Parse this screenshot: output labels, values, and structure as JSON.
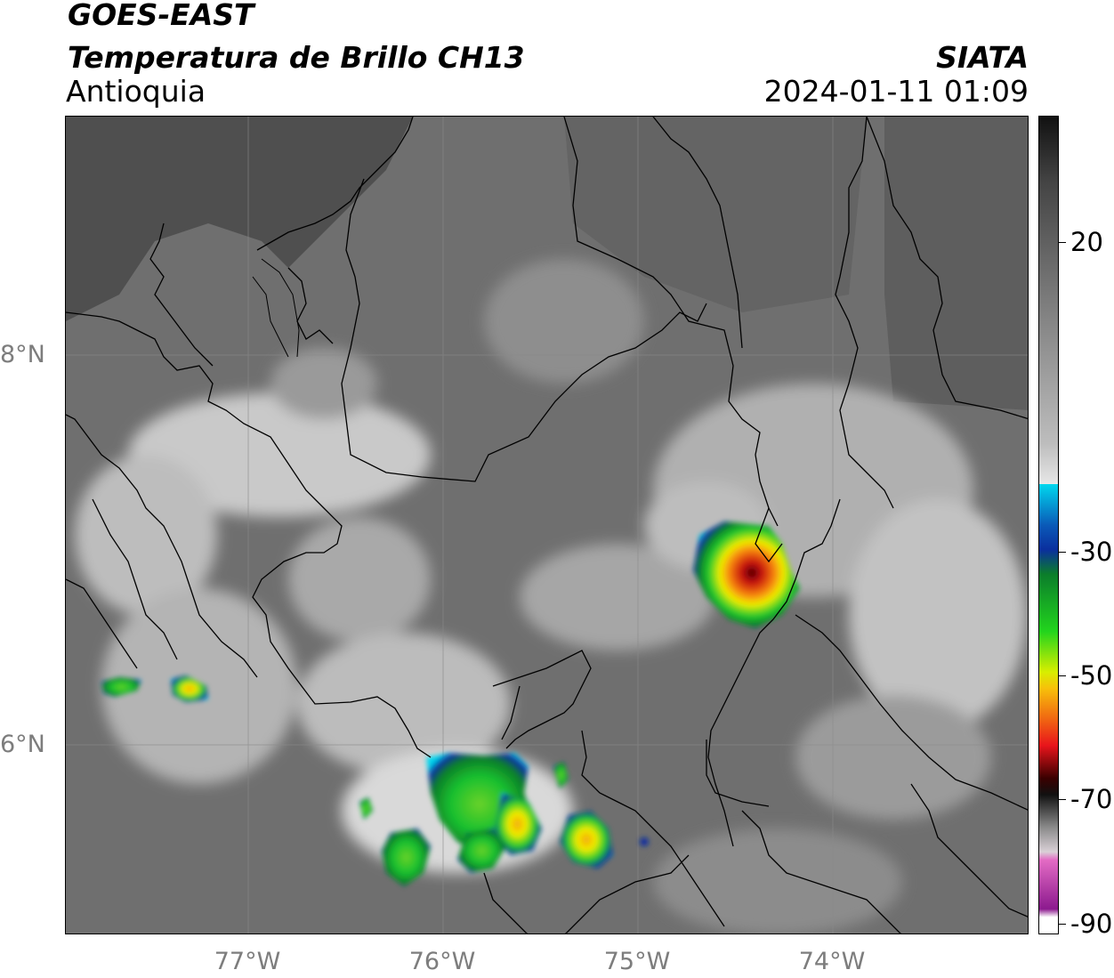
{
  "header": {
    "satellite": "GOES-EAST",
    "product": "Temperatura de Brillo CH13",
    "region": "Antioquia",
    "organization": "SIATA",
    "datetime": "2024-01-11 01:09"
  },
  "map": {
    "lon_labels": [
      "77°W",
      "76°W",
      "75°W",
      "74°W"
    ],
    "lat_labels": [
      "8°N",
      "6°N"
    ]
  },
  "colorbar": {
    "tick_labels": [
      "20",
      "-30",
      "-50",
      "-70",
      "-90"
    ],
    "colors": {
      "black": "#111111",
      "gray": "#808080",
      "white": "#f6f6f6",
      "cyan": "#00d7ee",
      "blue": "#0a2f9e",
      "green": "#13c832",
      "yellow": "#f1ee00",
      "red": "#e8141b",
      "darkred": "#3a0000",
      "pink": "#e36bc4",
      "purple": "#8c1a8e"
    }
  }
}
